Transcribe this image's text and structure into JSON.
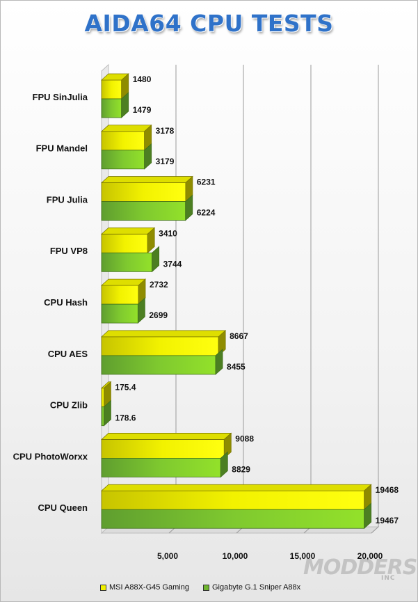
{
  "chart_data": {
    "type": "bar",
    "orientation": "horizontal",
    "title": "AIDA64 CPU TESTS",
    "categories": [
      "FPU SinJulia",
      "FPU Mandel",
      "FPU Julia",
      "FPU VP8",
      "CPU Hash",
      "CPU AES",
      "CPU Zlib",
      "CPU PhotoWorxx",
      "CPU Queen"
    ],
    "series": [
      {
        "name": "MSI A88X-G45 Gaming",
        "color": "#e6e600",
        "values": [
          1480,
          3178,
          6231,
          3410,
          2732,
          8667,
          175.4,
          9088,
          19468
        ],
        "labels": [
          "1480",
          "3178",
          "6231",
          "3410",
          "2732",
          "8667",
          "175.4",
          "9088",
          "19468"
        ]
      },
      {
        "name": "Gigabyte G.1 Sniper A88x",
        "color": "#7ac231",
        "values": [
          1479,
          3179,
          6224,
          3744,
          2699,
          8455,
          178.6,
          8829,
          19467
        ],
        "labels": [
          "1479",
          "3179",
          "6224",
          "3744",
          "2699",
          "8455",
          "178.6",
          "8829",
          "19467"
        ]
      }
    ],
    "xlim": [
      0,
      20000
    ],
    "ticks": [
      5000,
      10000,
      15000,
      20000
    ],
    "tick_labels": [
      "5,000",
      "10,000",
      "15,000",
      "20,000"
    ],
    "grid": true,
    "legend_position": "bottom"
  },
  "watermark": {
    "text": "MODDERS",
    "sub": "INC"
  }
}
